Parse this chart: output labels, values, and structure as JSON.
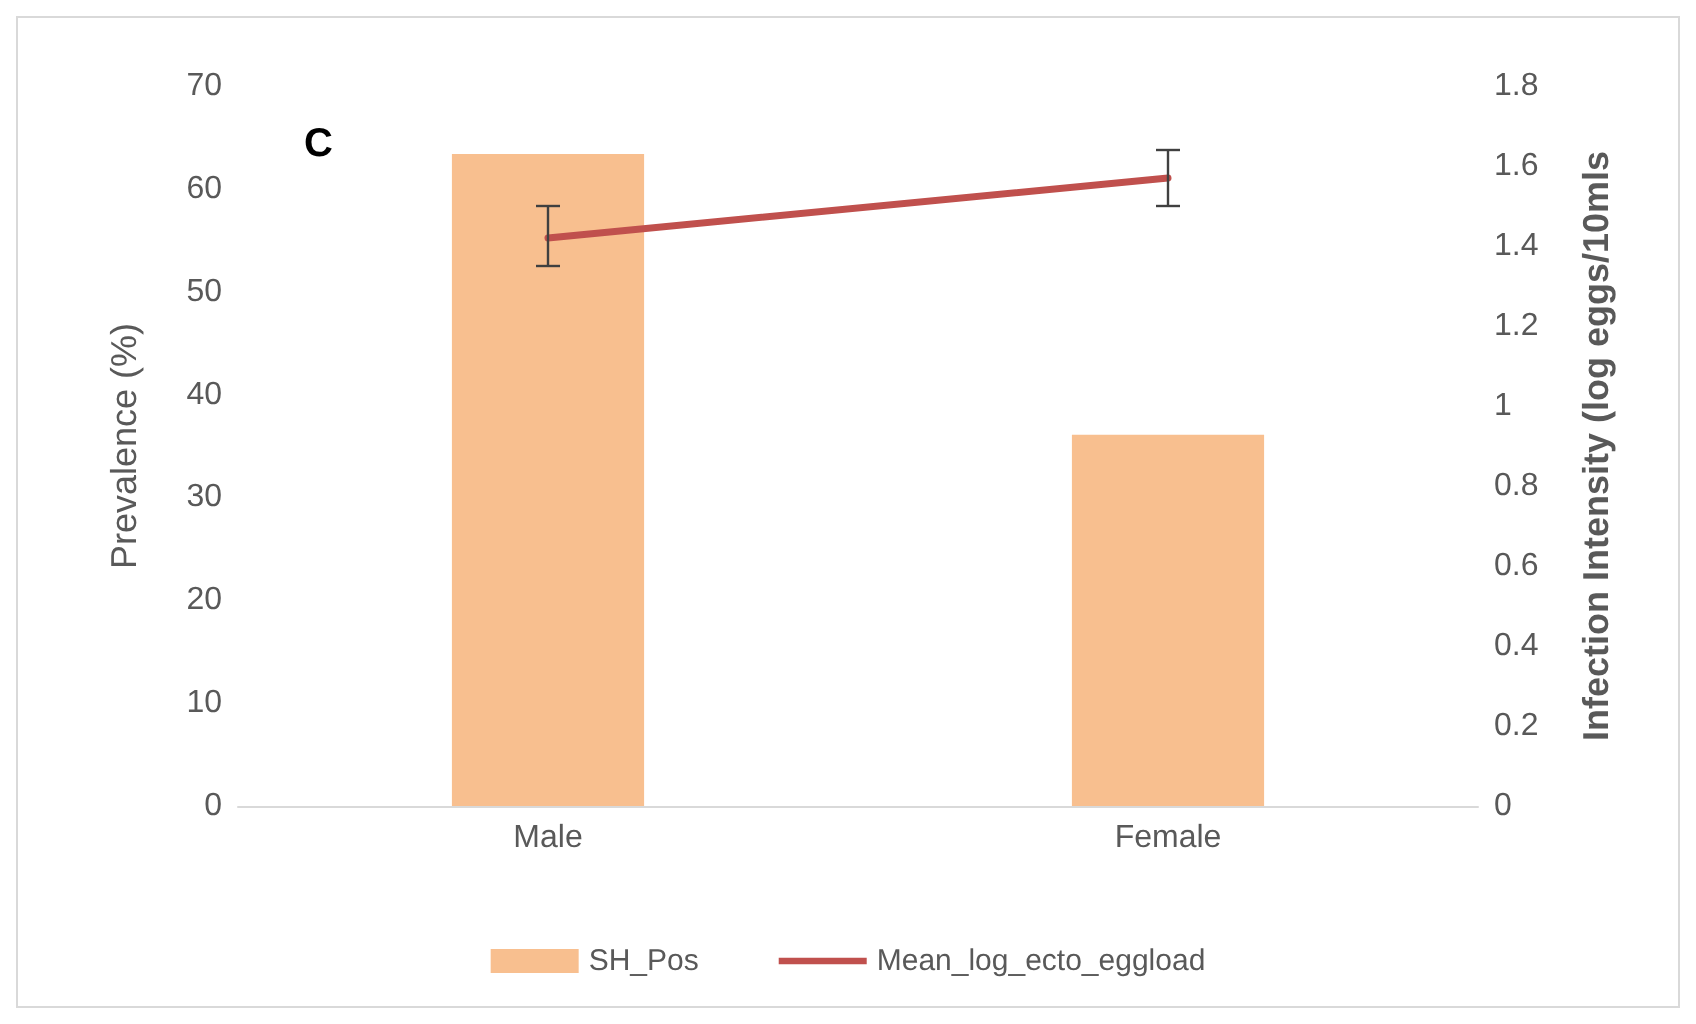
{
  "chart_data": {
    "type": "bar",
    "title": "C",
    "ylabel": "Prevalence (%)",
    "y2label": "Infection Intensity (log eggs/10mls",
    "categories": [
      "Male",
      "Female"
    ],
    "series": [
      {
        "name": "SH_Pos",
        "color": "#f8bf8f",
        "values": [
          63.4,
          36.1
        ]
      },
      {
        "name": "Mean_log_ecto_eggload",
        "type": "line",
        "axis": "y2",
        "color": "#c0504d",
        "values": [
          1.42,
          1.57
        ],
        "errors": [
          [
            1.35,
            1.5
          ],
          [
            1.5,
            1.64
          ]
        ]
      }
    ],
    "ylim": [
      0,
      70
    ],
    "yticks": [
      0,
      10,
      20,
      30,
      40,
      50,
      60,
      70
    ],
    "y2lim": [
      0,
      1.8
    ],
    "y2ticks": [
      0,
      0.2,
      0.4,
      0.6,
      0.8,
      1,
      1.2,
      1.4,
      1.6,
      1.8
    ],
    "grid": false,
    "legend": "bottom",
    "marker": "none",
    "line_style": "solid"
  }
}
